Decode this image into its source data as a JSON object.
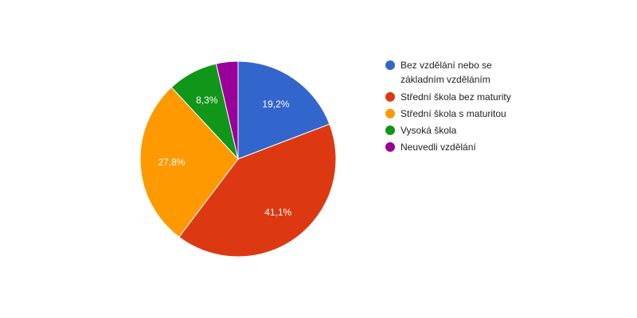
{
  "chart_data": {
    "type": "pie",
    "legend_position": "right",
    "categories": [
      "Bez vzdělání nebo se základním vzděláním",
      "Střední škola bez maturity",
      "Střední škola s maturitou",
      "Vysoká škola",
      "Neuvedli vzdělání"
    ],
    "legend_lines": [
      [
        "Bez vzdělání nebo se",
        "základním vzděláním"
      ],
      [
        "Střední škola bez maturity"
      ],
      [
        "Střední škola s maturitou"
      ],
      [
        "Vysoká škola"
      ],
      [
        "Neuvedli vzdělání"
      ]
    ],
    "values": [
      19.2,
      41.1,
      27.8,
      8.3,
      3.6
    ],
    "data_labels": [
      "19,2%",
      "41,1%",
      "27,8%",
      "8,3%",
      ""
    ],
    "colors": [
      "#3366cc",
      "#dc3912",
      "#ff9900",
      "#109618",
      "#990099"
    ]
  }
}
